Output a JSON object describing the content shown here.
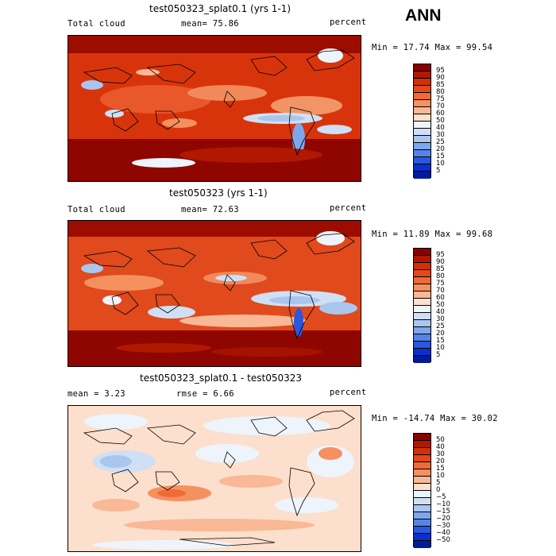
{
  "season": "ANN",
  "panels": [
    {
      "title": "test050323_splat0.1 (yrs 1-1)",
      "left_label": "Total cloud",
      "center_label": "mean=  75.86",
      "right_label": "percent",
      "minmax": "Min =  17.74 Max =  99.54",
      "colorbar": [
        "95",
        "90",
        "85",
        "80",
        "75",
        "70",
        "60",
        "50",
        "40",
        "30",
        "25",
        "20",
        "15",
        "10",
        "5"
      ],
      "colors": [
        "#8b0000",
        "#b01800",
        "#d02f08",
        "#e3481a",
        "#ee6b38",
        "#f5915f",
        "#f9b896",
        "#fcdfcc",
        "#eef4fb",
        "#cfe0f5",
        "#a9c6ef",
        "#7ea6ea",
        "#5683e6",
        "#2a57dd",
        "#0a2fcc",
        "#001a99"
      ]
    },
    {
      "title": "test050323 (yrs 1-1)",
      "left_label": "Total cloud",
      "center_label": "mean=  72.63",
      "right_label": "percent",
      "minmax": "Min =  11.89 Max =  99.68",
      "colorbar": [
        "95",
        "90",
        "85",
        "80",
        "75",
        "70",
        "60",
        "50",
        "40",
        "30",
        "25",
        "20",
        "15",
        "10",
        "5"
      ],
      "colors": [
        "#8b0000",
        "#b01800",
        "#d02f08",
        "#e3481a",
        "#ee6b38",
        "#f5915f",
        "#f9b896",
        "#fcdfcc",
        "#eef4fb",
        "#cfe0f5",
        "#a9c6ef",
        "#7ea6ea",
        "#5683e6",
        "#2a57dd",
        "#0a2fcc",
        "#001a99"
      ]
    },
    {
      "title": "test050323_splat0.1 - test050323",
      "left_label": "mean =   3.23",
      "center_label": "rmse =   6.66",
      "right_label": "percent",
      "minmax": "Min = -14.74 Max =  30.02",
      "colorbar": [
        "50",
        "40",
        "30",
        "20",
        "15",
        "10",
        "5",
        "0",
        "−5",
        "−10",
        "−15",
        "−20",
        "−30",
        "−40",
        "−50"
      ],
      "colors": [
        "#8b0000",
        "#b01800",
        "#d02f08",
        "#e3481a",
        "#ee6b38",
        "#f5915f",
        "#f9b896",
        "#fcdfcc",
        "#eef4fb",
        "#cfe0f5",
        "#a9c6ef",
        "#7ea6ea",
        "#5683e6",
        "#2a57dd",
        "#0a2fcc",
        "#001a99"
      ]
    }
  ]
}
